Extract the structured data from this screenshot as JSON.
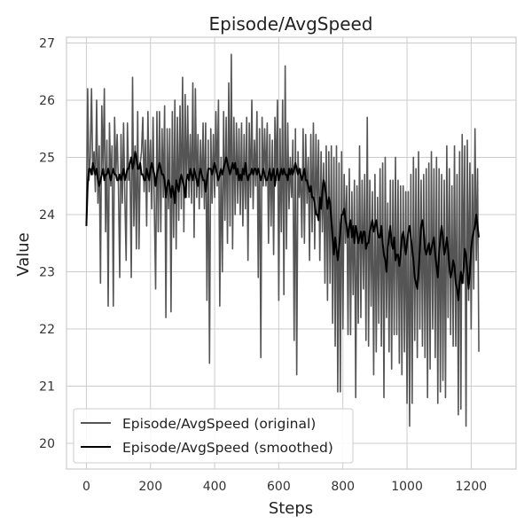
{
  "chart_data": {
    "type": "line",
    "title": "Episode/AvgSpeed",
    "xlabel": "Steps",
    "ylabel": "Value",
    "xlim": [
      -62,
      1340
    ],
    "ylim": [
      19.55,
      27.1
    ],
    "x_ticks": [
      0,
      200,
      400,
      600,
      800,
      1000,
      1200
    ],
    "y_ticks": [
      20,
      21,
      22,
      23,
      24,
      25,
      26,
      27
    ],
    "grid": true,
    "legend_position": "lower-left",
    "x_range": [
      0,
      1280
    ],
    "series": [
      {
        "name": "Episode/AvgSpeed (original)",
        "color": "#555555",
        "x_step": 4,
        "values": [
          23.8,
          26.2,
          24.6,
          25.0,
          26.2,
          24.7,
          25.1,
          24.4,
          26.0,
          24.2,
          25.2,
          22.8,
          25.9,
          24.8,
          26.2,
          23.7,
          25.3,
          22.4,
          25.6,
          24.5,
          25.2,
          22.4,
          25.7,
          24.7,
          25.4,
          24.5,
          22.9,
          25.4,
          24.2,
          25.6,
          24.3,
          23.2,
          25.6,
          24.6,
          24.9,
          22.9,
          26.4,
          23.8,
          25.2,
          23.4,
          25.8,
          23.4,
          24.9,
          25.1,
          25.7,
          24.4,
          25.3,
          23.8,
          25.8,
          24.4,
          25.3,
          24.1,
          25.7,
          24.1,
          22.7,
          25.8,
          23.7,
          25.8,
          23.7,
          25.5,
          24.3,
          25.9,
          22.2,
          25.5,
          24.1,
          25.5,
          22.3,
          25.8,
          23.6,
          26.0,
          23.4,
          25.7,
          23.9,
          25.9,
          24.1,
          26.4,
          23.7,
          26.1,
          24.3,
          25.9,
          24.3,
          25.4,
          24.2,
          26.3,
          23.6,
          26.2,
          24.3,
          25.4,
          24.1,
          25.3,
          24.3,
          25.6,
          24.1,
          25.6,
          22.5,
          25.3,
          21.4,
          25.5,
          24.2,
          25.4,
          24.3,
          25.8,
          24.5,
          26.0,
          22.4,
          25.0,
          23.0,
          25.8,
          23.9,
          25.7,
          23.5,
          26.3,
          23.8,
          26.8,
          23.4,
          25.7,
          24.0,
          25.6,
          24.2,
          25.5,
          24.0,
          25.6,
          23.8,
          25.4,
          24.1,
          25.7,
          23.2,
          25.6,
          24.3,
          26.0,
          24.1,
          25.3,
          24.5,
          25.8,
          22.9,
          25.5,
          21.5,
          25.7,
          24.5,
          25.5,
          24.5,
          25.6,
          23.5,
          25.4,
          23.8,
          25.3,
          23.3,
          25.7,
          24.6,
          26.0,
          22.5,
          25.5,
          23.7,
          26.0,
          22.6,
          26.6,
          23.4,
          25.6,
          24.1,
          25.0,
          24.3,
          25.3,
          21.8,
          25.5,
          21.2,
          25.1,
          24.3,
          24.8,
          23.6,
          25.5,
          23.5,
          25.4,
          24.2,
          25.0,
          23.2,
          25.4,
          23.7,
          25.6,
          23.4,
          25.4,
          24.0,
          25.3,
          23.2,
          25.1,
          23.7,
          24.9,
          22.8,
          25.2,
          22.5,
          25.1,
          22.8,
          25.2,
          22.1,
          25.0,
          21.7,
          25.2,
          20.9,
          24.9,
          20.9,
          25.1,
          22.0,
          24.7,
          23.5,
          24.5,
          21.9,
          24.8,
          21.9,
          24.4,
          22.6,
          24.6,
          20.8,
          24.5,
          22.1,
          25.2,
          22.2,
          24.6,
          22.7,
          24.7,
          21.8,
          25.7,
          21.7,
          24.6,
          22.4,
          24.4,
          21.2,
          24.7,
          21.6,
          24.3,
          22.1,
          24.8,
          21.7,
          24.9,
          20.8,
          25.0,
          22.2,
          24.2,
          21.6,
          24.6,
          21.3,
          24.6,
          21.9,
          25.0,
          21.9,
          24.6,
          21.4,
          24.5,
          21.2,
          24.5,
          21.6,
          24.4,
          20.7,
          24.4,
          20.3,
          24.7,
          20.7,
          25.0,
          21.8,
          24.8,
          21.5,
          25.1,
          22.0,
          24.6,
          21.7,
          24.7,
          21.5,
          24.8,
          20.8,
          24.9,
          21.3,
          25.1,
          22.0,
          24.8,
          21.5,
          25.0,
          20.7,
          24.8,
          20.9,
          24.7,
          21.1,
          24.6,
          20.8,
          25.2,
          22.2,
          24.8,
          21.9,
          24.5,
          21.7,
          25.2,
          21.7,
          24.7,
          20.5,
          25.1,
          20.6,
          25.4,
          22.8,
          25.2,
          20.3,
          25.3,
          22.5,
          24.9,
          22.0,
          24.7,
          22.7,
          25.5,
          23.2,
          24.8,
          21.6
        ]
      },
      {
        "name": "Episode/AvgSpeed (smoothed)",
        "color": "#000000",
        "x_step": 4,
        "values": [
          23.8,
          24.5,
          24.8,
          24.8,
          24.7,
          24.9,
          24.8,
          24.7,
          24.8,
          24.6,
          24.5,
          24.6,
          24.7,
          24.8,
          24.6,
          24.7,
          24.7,
          24.8,
          24.7,
          24.6,
          24.7,
          24.8,
          24.7,
          24.7,
          24.6,
          24.6,
          24.7,
          24.6,
          24.7,
          24.8,
          24.6,
          24.7,
          24.8,
          24.8,
          24.9,
          25.0,
          24.8,
          24.9,
          25.1,
          25.0,
          24.8,
          24.8,
          24.9,
          24.7,
          24.7,
          24.6,
          24.6,
          24.8,
          24.7,
          24.6,
          24.8,
          24.9,
          24.8,
          24.7,
          24.5,
          24.7,
          24.8,
          24.9,
          24.8,
          24.7,
          24.7,
          24.6,
          24.3,
          24.5,
          24.6,
          24.5,
          24.3,
          24.5,
          24.4,
          24.2,
          24.6,
          24.5,
          24.4,
          24.6,
          24.7,
          24.6,
          24.5,
          24.3,
          24.6,
          24.7,
          24.6,
          24.8,
          24.7,
          24.6,
          24.8,
          24.7,
          24.6,
          24.5,
          24.7,
          24.8,
          24.7,
          24.6,
          24.6,
          24.4,
          24.6,
          24.8,
          24.8,
          24.8,
          24.7,
          24.8,
          24.9,
          24.8,
          24.7,
          24.6,
          24.7,
          24.8,
          24.7,
          24.8,
          24.9,
          25.0,
          24.9,
          24.8,
          24.7,
          24.8,
          24.9,
          24.8,
          24.9,
          24.7,
          24.8,
          24.6,
          24.7,
          24.6,
          24.8,
          24.7,
          24.9,
          24.7,
          24.6,
          24.7,
          24.7,
          24.8,
          24.7,
          24.8,
          24.8,
          24.7,
          24.8,
          24.7,
          24.6,
          24.7,
          24.8,
          24.7,
          24.6,
          24.6,
          24.7,
          24.8,
          24.6,
          24.7,
          24.8,
          24.5,
          24.7,
          24.8,
          24.6,
          24.7,
          24.8,
          24.7,
          24.8,
          24.7,
          24.7,
          24.6,
          24.8,
          24.7,
          24.8,
          24.7,
          24.8,
          24.9,
          24.8,
          24.7,
          24.8,
          24.7,
          24.6,
          24.7,
          24.8,
          24.6,
          24.6,
          24.5,
          24.4,
          24.5,
          24.3,
          24.3,
          24.2,
          24.0,
          24.0,
          23.9,
          24.3,
          24.1,
          24.4,
          24.6,
          24.5,
          24.3,
          24.1,
          24.3,
          24.2,
          23.9,
          23.6,
          23.3,
          23.6,
          23.4,
          23.2,
          23.4,
          23.7,
          24.0,
          24.0,
          24.1,
          23.9,
          23.8,
          23.6,
          23.8,
          23.9,
          23.6,
          23.8,
          23.5,
          23.8,
          23.7,
          23.5,
          23.6,
          23.7,
          23.5,
          23.7,
          23.7,
          23.4,
          23.5,
          23.5,
          23.7,
          23.8,
          23.9,
          23.7,
          23.8,
          23.9,
          23.7,
          23.6,
          23.6,
          23.8,
          23.5,
          23.3,
          23.2,
          23.0,
          23.4,
          23.6,
          23.8,
          23.5,
          23.4,
          23.6,
          23.2,
          23.3,
          23.3,
          23.1,
          23.3,
          23.6,
          23.7,
          23.5,
          23.3,
          23.5,
          23.7,
          23.8,
          23.6,
          23.4,
          23.2,
          22.9,
          22.8,
          22.7,
          23.0,
          23.4,
          23.8,
          23.9,
          23.7,
          23.4,
          23.3,
          23.4,
          23.5,
          23.3,
          23.4,
          23.5,
          23.6,
          23.3,
          23.1,
          22.9,
          23.3,
          23.6,
          23.8,
          23.6,
          23.3,
          23.4,
          23.6,
          23.4,
          23.1,
          22.9,
          23.0,
          23.2,
          23.1,
          22.8,
          22.7,
          22.5,
          22.8,
          23.0,
          22.8,
          23.0,
          23.4,
          23.3,
          23.0,
          22.7,
          23.0,
          23.4,
          23.6,
          23.7,
          23.8,
          24.0,
          23.8,
          23.6
        ]
      }
    ]
  }
}
